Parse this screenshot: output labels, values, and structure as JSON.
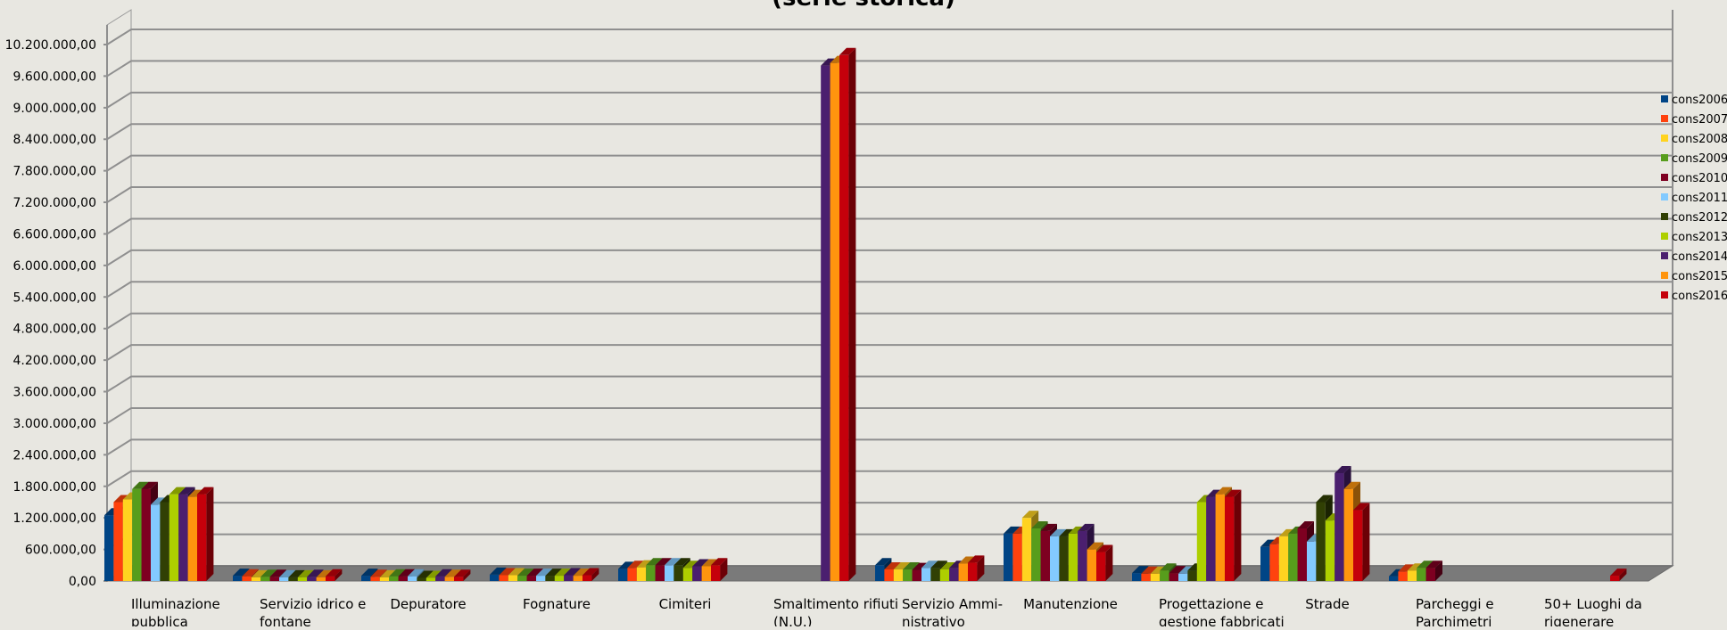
{
  "chart_data": {
    "type": "bar",
    "title": "(serie storica)",
    "xlabel": "",
    "ylabel": "",
    "ylim": [
      0,
      10200000
    ],
    "yticks": [
      0,
      600000,
      1200000,
      1800000,
      2400000,
      3000000,
      3600000,
      4200000,
      4800000,
      5400000,
      6000000,
      6600000,
      7200000,
      7800000,
      8400000,
      9000000,
      9600000,
      10200000
    ],
    "ytick_labels": [
      "0,00",
      "600.000,00",
      "1.200.000,00",
      "1.800.000,00",
      "2.400.000,00",
      "3.000.000,00",
      "3.600.000,00",
      "4.200.000,00",
      "4.800.000,00",
      "5.400.000,00",
      "6.000.000,00",
      "6.600.000,00",
      "7.200.000,00",
      "7.800.000,00",
      "8.400.000,00",
      "9.000.000,00",
      "9.600.000,00",
      "10.200.000,00"
    ],
    "grid": true,
    "legend_position": "right",
    "categories": [
      [
        "Illuminazione",
        "pubblica"
      ],
      [
        "Servizio idrico e",
        "fontane"
      ],
      [
        "Depuratore"
      ],
      [
        "Fognature"
      ],
      [
        "Cimiteri"
      ],
      [
        "Smaltimento rifiuti",
        "(N.U.)"
      ],
      [
        "Servizio Ammi-",
        "nistrativo"
      ],
      [
        "Manutenzione"
      ],
      [
        "Progettazione e",
        "gestione fabbricati"
      ],
      [
        "Strade"
      ],
      [
        "Parcheggi e",
        "Parchimetri"
      ],
      [
        "50+ Luoghi da",
        "rigenerare"
      ]
    ],
    "series": [
      {
        "name": "cons2006",
        "color": "#004586",
        "values": [
          1250000,
          100000,
          100000,
          120000,
          230000,
          0,
          300000,
          900000,
          150000,
          650000,
          90000,
          0
        ]
      },
      {
        "name": "cons2007",
        "color": "#ff420e",
        "values": [
          1500000,
          90000,
          80000,
          110000,
          250000,
          0,
          220000,
          900000,
          140000,
          700000,
          180000,
          0
        ]
      },
      {
        "name": "cons2008",
        "color": "#ffd320",
        "values": [
          1550000,
          70000,
          70000,
          110000,
          260000,
          0,
          220000,
          1200000,
          140000,
          850000,
          200000,
          0
        ]
      },
      {
        "name": "cons2009",
        "color": "#579d1c",
        "values": [
          1750000,
          80000,
          90000,
          100000,
          300000,
          0,
          220000,
          1000000,
          200000,
          900000,
          250000,
          0
        ]
      },
      {
        "name": "cons2010",
        "color": "#7e0021",
        "values": [
          1750000,
          80000,
          90000,
          100000,
          300000,
          0,
          210000,
          950000,
          150000,
          1000000,
          250000,
          0
        ]
      },
      {
        "name": "cons2011",
        "color": "#83caff",
        "values": [
          1450000,
          70000,
          90000,
          100000,
          300000,
          0,
          250000,
          850000,
          140000,
          750000,
          0,
          0
        ]
      },
      {
        "name": "cons2012",
        "color": "#314004",
        "values": [
          1500000,
          70000,
          60000,
          100000,
          300000,
          0,
          250000,
          850000,
          200000,
          1500000,
          0,
          0
        ]
      },
      {
        "name": "cons2013",
        "color": "#aecf00",
        "values": [
          1650000,
          70000,
          60000,
          100000,
          250000,
          0,
          220000,
          900000,
          1500000,
          1150000,
          0,
          0
        ]
      },
      {
        "name": "cons2014",
        "color": "#4b1f6f",
        "values": [
          1650000,
          80000,
          90000,
          110000,
          280000,
          9800000,
          250000,
          950000,
          1600000,
          2050000,
          0,
          0
        ]
      },
      {
        "name": "cons2015",
        "color": "#ff950e",
        "values": [
          1600000,
          70000,
          80000,
          100000,
          280000,
          9850000,
          330000,
          600000,
          1650000,
          1750000,
          0,
          0
        ]
      },
      {
        "name": "cons2016",
        "color": "#c5000b",
        "values": [
          1650000,
          90000,
          80000,
          110000,
          300000,
          10000000,
          350000,
          550000,
          1600000,
          1350000,
          0,
          100000
        ]
      }
    ]
  }
}
